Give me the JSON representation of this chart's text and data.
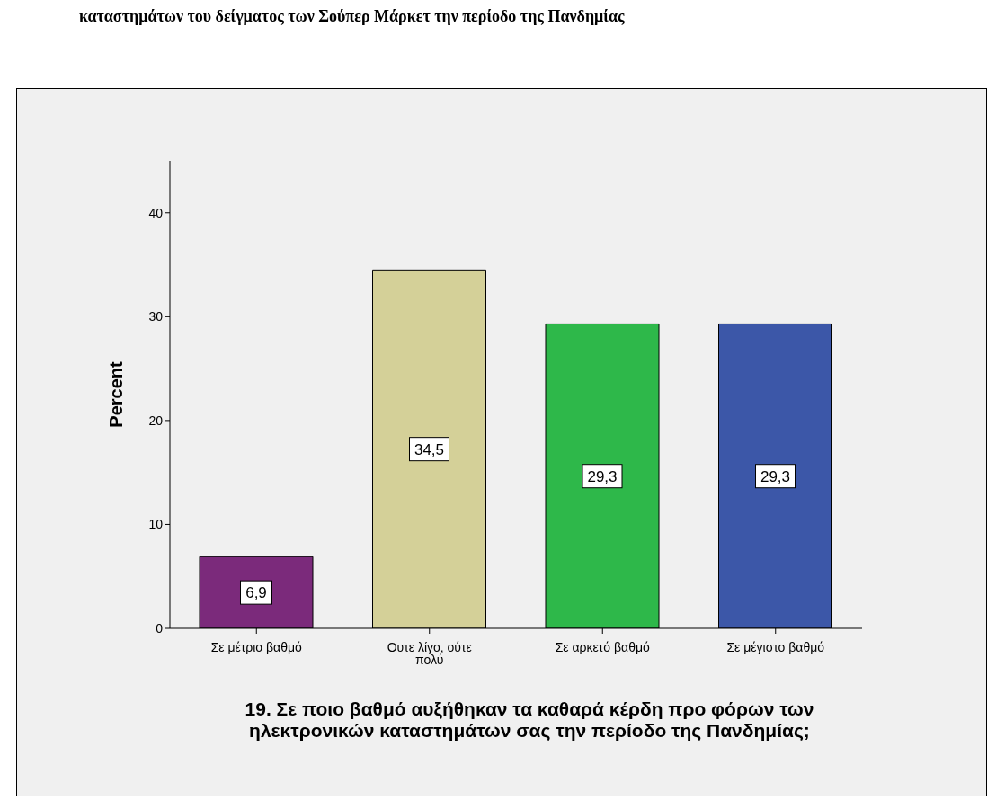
{
  "chart_data": {
    "type": "bar",
    "ylabel": "Percent",
    "xlabel": "19.  Σε ποιο βαθμό αυξήθηκαν τα καθαρά κέρδη προ φόρων των ηλεκτρονικών καταστημάτων σας την περίοδο της Πανδημίας;",
    "annotations": [
      "καταστημάτων του δείγματος των Σούπερ Μάρκετ την περίοδο της Πανδημίας"
    ],
    "categories": [
      "Σε μέτριο βαθμό",
      "Ουτε λίγο, ούτε πολύ",
      "Σε αρκετό βαθμό",
      "Σε μέγιστο βαθμό"
    ],
    "values": [
      6.9,
      34.5,
      29.3,
      29.3
    ],
    "colors": [
      "#7b2a7b",
      "#d4d098",
      "#2eb84a",
      "#3c57a8"
    ],
    "value_labels": [
      "6,9",
      "34,5",
      "29,3",
      "29,3"
    ],
    "ylim": [
      0,
      45
    ],
    "yticks": [
      0,
      10,
      20,
      30,
      40
    ],
    "grid": false,
    "legend": false
  }
}
